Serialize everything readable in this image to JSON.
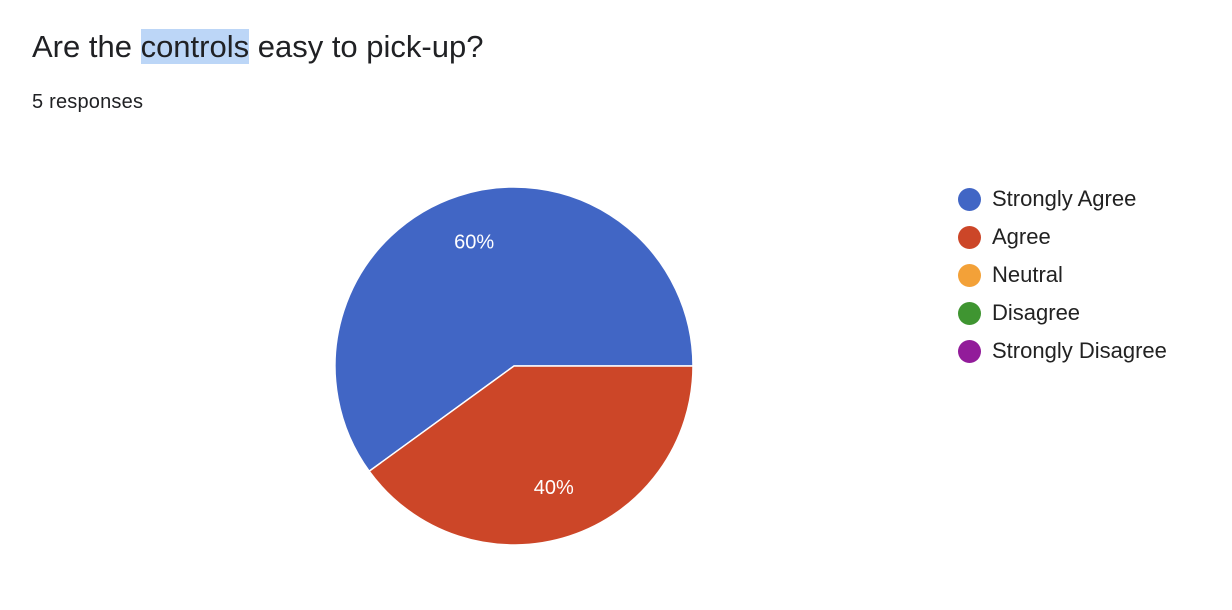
{
  "question": {
    "title_before": "Are the ",
    "title_highlight": "controls",
    "title_after": " easy to pick-up?",
    "responses": "5 responses"
  },
  "colors": {
    "strongly_agree": "#4166c5",
    "agree": "#cc4628",
    "neutral": "#f3a138",
    "disagree": "#3f9531",
    "strongly_disagree": "#921c9a",
    "selection_highlight": "#bcd6f7"
  },
  "chart_data": {
    "type": "pie",
    "title": "Are the controls easy to pick-up?",
    "categories": [
      "Strongly Agree",
      "Agree",
      "Neutral",
      "Disagree",
      "Strongly Disagree"
    ],
    "values": [
      60,
      40,
      0,
      0,
      0
    ],
    "slice_labels": [
      "60%",
      "40%",
      "",
      "",
      ""
    ],
    "colors": [
      "#4166c5",
      "#cc4628",
      "#f3a138",
      "#3f9531",
      "#921c9a"
    ],
    "legend_position": "right"
  }
}
